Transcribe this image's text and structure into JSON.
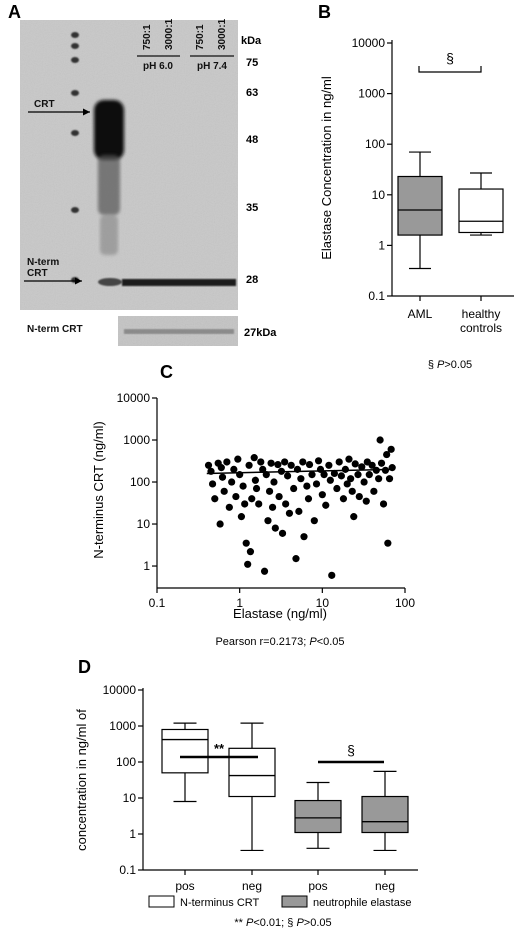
{
  "colors": {
    "gel_bg": "#c9c9c9",
    "box_gray": "#999999",
    "box_white": "#ffffff",
    "ink": "#000000"
  },
  "panels": {
    "A": {
      "letter": "A",
      "kda_unit": "kDa",
      "markers": [
        "75",
        "63",
        "48",
        "35",
        "28"
      ],
      "lane_ratios": [
        "750:1",
        "3000:1",
        "750:1",
        "3000:1"
      ],
      "ph_labels": [
        "pH 6.0",
        "pH 7.4"
      ],
      "band_label_crt": "CRT",
      "band_label_nterm_1": "N-term",
      "band_label_nterm_2": "CRT",
      "strip_label": "N-term CRT",
      "strip_kda": "27kDa"
    },
    "B": {
      "letter": "B",
      "significance_mark": "§",
      "note_sym": "§",
      "note_p": "P",
      "note_rest": ">0.05"
    },
    "C": {
      "letter": "C",
      "stats_prefix": "Pearson r=0.2173; ",
      "stats_p": "P",
      "stats_suffix": "<0.05"
    },
    "D": {
      "letter": "D",
      "sig_left": "**",
      "sig_right": "§",
      "legend_white": "N-terminus CRT",
      "legend_gray": "neutrophile elastase",
      "note": {
        "a": "** ",
        "p1": "P",
        "b": "<0.01; § ",
        "p2": "P",
        "c": ">0.05"
      }
    }
  },
  "chart_data": [
    {
      "panel": "B",
      "type": "box",
      "ylabel": "Elastase Concentration in ng/ml",
      "yscale": "log",
      "ylim": [
        0.1,
        10000
      ],
      "yticks": [
        "0.1",
        "1",
        "10",
        "100",
        "1000",
        "10000"
      ],
      "categories": [
        "AML",
        "healthy controls"
      ],
      "category_lines": [
        [
          "AML"
        ],
        [
          "healthy",
          "controls"
        ]
      ],
      "boxes": [
        {
          "category": "AML",
          "fill": "gray",
          "min": 0.35,
          "q1": 1.6,
          "median": 5,
          "q3": 23,
          "max": 70
        },
        {
          "category": "healthy controls",
          "fill": "white",
          "min": 1.6,
          "q1": 1.8,
          "median": 3,
          "q3": 13,
          "max": 27
        }
      ]
    },
    {
      "panel": "C",
      "type": "scatter",
      "xlabel": "Elastase (ng/ml)",
      "ylabel": "N-terminus CRT (ng/ml)",
      "xscale": "log",
      "yscale": "log",
      "xlim": [
        0.1,
        100
      ],
      "ylim": [
        0.3,
        10000
      ],
      "xticks": [
        "0.1",
        "1",
        "10",
        "100"
      ],
      "yticks": [
        "1",
        "10",
        "100",
        "1000",
        "10000"
      ],
      "trend": {
        "x": [
          0.4,
          70
        ],
        "y": [
          160,
          200
        ]
      },
      "points": [
        [
          0.42,
          250
        ],
        [
          0.45,
          180
        ],
        [
          0.47,
          90
        ],
        [
          0.5,
          40
        ],
        [
          0.55,
          280
        ],
        [
          0.6,
          220
        ],
        [
          0.62,
          130
        ],
        [
          0.65,
          60
        ],
        [
          0.7,
          300
        ],
        [
          0.75,
          25
        ],
        [
          0.8,
          100
        ],
        [
          0.85,
          200
        ],
        [
          0.9,
          45
        ],
        [
          0.95,
          350
        ],
        [
          1.0,
          150
        ],
        [
          1.05,
          15
        ],
        [
          1.1,
          80
        ],
        [
          1.2,
          3.5
        ],
        [
          1.25,
          1.1
        ],
        [
          1.3,
          250
        ],
        [
          1.35,
          2.2
        ],
        [
          1.4,
          40
        ],
        [
          1.5,
          380
        ],
        [
          1.55,
          110
        ],
        [
          1.6,
          70
        ],
        [
          1.7,
          30
        ],
        [
          1.8,
          300
        ],
        [
          1.9,
          200
        ],
        [
          2.0,
          0.75
        ],
        [
          2.1,
          150
        ],
        [
          2.2,
          12
        ],
        [
          2.3,
          60
        ],
        [
          2.4,
          280
        ],
        [
          2.5,
          25
        ],
        [
          2.6,
          100
        ],
        [
          2.7,
          8
        ],
        [
          2.9,
          260
        ],
        [
          3.0,
          45
        ],
        [
          3.2,
          180
        ],
        [
          3.3,
          6
        ],
        [
          3.5,
          300
        ],
        [
          3.6,
          30
        ],
        [
          3.8,
          140
        ],
        [
          4.0,
          18
        ],
        [
          4.2,
          250
        ],
        [
          4.5,
          70
        ],
        [
          4.8,
          1.5
        ],
        [
          5.0,
          200
        ],
        [
          5.2,
          20
        ],
        [
          5.5,
          120
        ],
        [
          5.8,
          300
        ],
        [
          6.0,
          5
        ],
        [
          6.5,
          80
        ],
        [
          6.8,
          40
        ],
        [
          7.0,
          260
        ],
        [
          7.5,
          150
        ],
        [
          8.0,
          12
        ],
        [
          8.5,
          90
        ],
        [
          9.0,
          320
        ],
        [
          9.5,
          200
        ],
        [
          10,
          50
        ],
        [
          10.5,
          150
        ],
        [
          11,
          28
        ],
        [
          12,
          250
        ],
        [
          12.5,
          110
        ],
        [
          13,
          0.6
        ],
        [
          14,
          160
        ],
        [
          15,
          70
        ],
        [
          16,
          300
        ],
        [
          17,
          140
        ],
        [
          18,
          40
        ],
        [
          19,
          200
        ],
        [
          20,
          90
        ],
        [
          21,
          350
        ],
        [
          22,
          120
        ],
        [
          23,
          60
        ],
        [
          24,
          15
        ],
        [
          25,
          270
        ],
        [
          27,
          150
        ],
        [
          28,
          45
        ],
        [
          30,
          230
        ],
        [
          32,
          100
        ],
        [
          34,
          35
        ],
        [
          35,
          300
        ],
        [
          37,
          150
        ],
        [
          40,
          250
        ],
        [
          42,
          60
        ],
        [
          45,
          190
        ],
        [
          48,
          120
        ],
        [
          50,
          1000
        ],
        [
          52,
          280
        ],
        [
          55,
          30
        ],
        [
          58,
          190
        ],
        [
          60,
          450
        ],
        [
          62,
          3.5
        ],
        [
          65,
          120
        ],
        [
          68,
          600
        ],
        [
          70,
          220
        ],
        [
          0.58,
          10
        ],
        [
          1.15,
          30
        ]
      ]
    },
    {
      "panel": "D",
      "type": "box",
      "ylabel": "concentration in ng/ml of",
      "yscale": "log",
      "ylim": [
        0.1,
        10000
      ],
      "yticks": [
        "0.1",
        "1",
        "10",
        "100",
        "1000",
        "10000"
      ],
      "categories": [
        "pos",
        "neg",
        "pos",
        "neg"
      ],
      "series": [
        {
          "name": "N-terminus CRT",
          "fill": "white"
        },
        {
          "name": "neutrophile elastase",
          "fill": "gray"
        }
      ],
      "boxes": [
        {
          "category": "pos",
          "series": "N-terminus CRT",
          "min": 8,
          "q1": 50,
          "median": 420,
          "q3": 800,
          "max": 1200
        },
        {
          "category": "neg",
          "series": "N-terminus CRT",
          "min": 0.35,
          "q1": 11,
          "median": 42,
          "q3": 240,
          "max": 1200
        },
        {
          "category": "pos",
          "series": "neutrophile elastase",
          "min": 0.4,
          "q1": 1.1,
          "median": 2.8,
          "q3": 8.5,
          "max": 27
        },
        {
          "category": "neg",
          "series": "neutrophile elastase",
          "min": 0.35,
          "q1": 1.1,
          "median": 2.2,
          "q3": 11,
          "max": 55
        }
      ]
    }
  ]
}
